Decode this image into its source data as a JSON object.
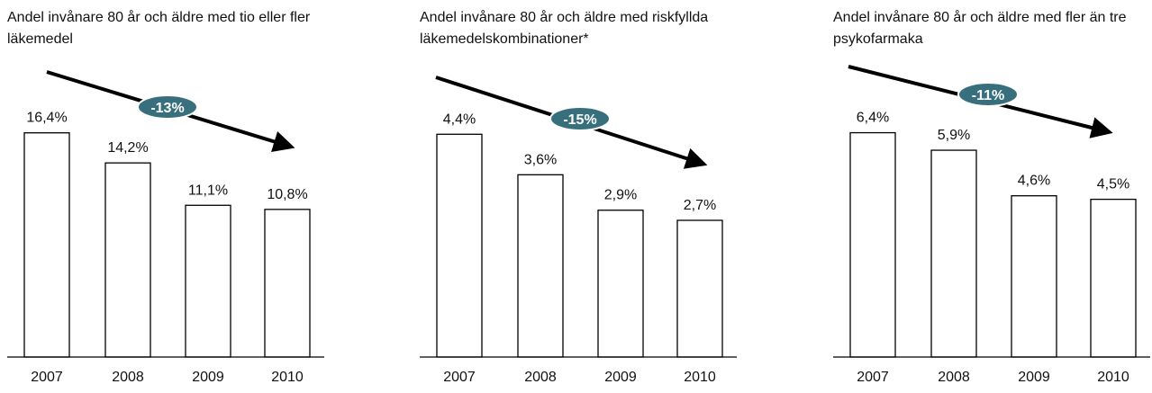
{
  "chart_data": [
    {
      "type": "bar",
      "title": "Andel invånare 80 år och äldre med tio eller fler läkemedel",
      "categories": [
        "2007",
        "2008",
        "2009",
        "2010"
      ],
      "values": [
        16.4,
        14.2,
        11.1,
        10.8
      ],
      "value_labels": [
        "16,4%",
        "14,2%",
        "11,1%",
        "10,8%"
      ],
      "annotation": "-13%",
      "color": "#ffffff",
      "ylim": [
        0,
        20
      ]
    },
    {
      "type": "bar",
      "title": "Andel invånare 80 år och äldre med riskfyllda läkemedelskombinationer*",
      "categories": [
        "2007",
        "2008",
        "2009",
        "2010"
      ],
      "values": [
        4.4,
        3.6,
        2.9,
        2.7
      ],
      "value_labels": [
        "4,4%",
        "3,6%",
        "2,9%",
        "2,7%"
      ],
      "annotation": "-15%",
      "color": "#ffffff",
      "ylim": [
        0,
        5.4
      ]
    },
    {
      "type": "bar",
      "title": "Andel invånare 80 år och äldre med fler än tre psykofarmaka",
      "categories": [
        "2007",
        "2008",
        "2009",
        "2010"
      ],
      "values": [
        6.4,
        5.9,
        4.6,
        4.5
      ],
      "value_labels": [
        "6,4%",
        "5,9%",
        "4,6%",
        "4,5%"
      ],
      "annotation": "-11%",
      "color": "#ffffff",
      "ylim": [
        0,
        7.8
      ]
    }
  ]
}
